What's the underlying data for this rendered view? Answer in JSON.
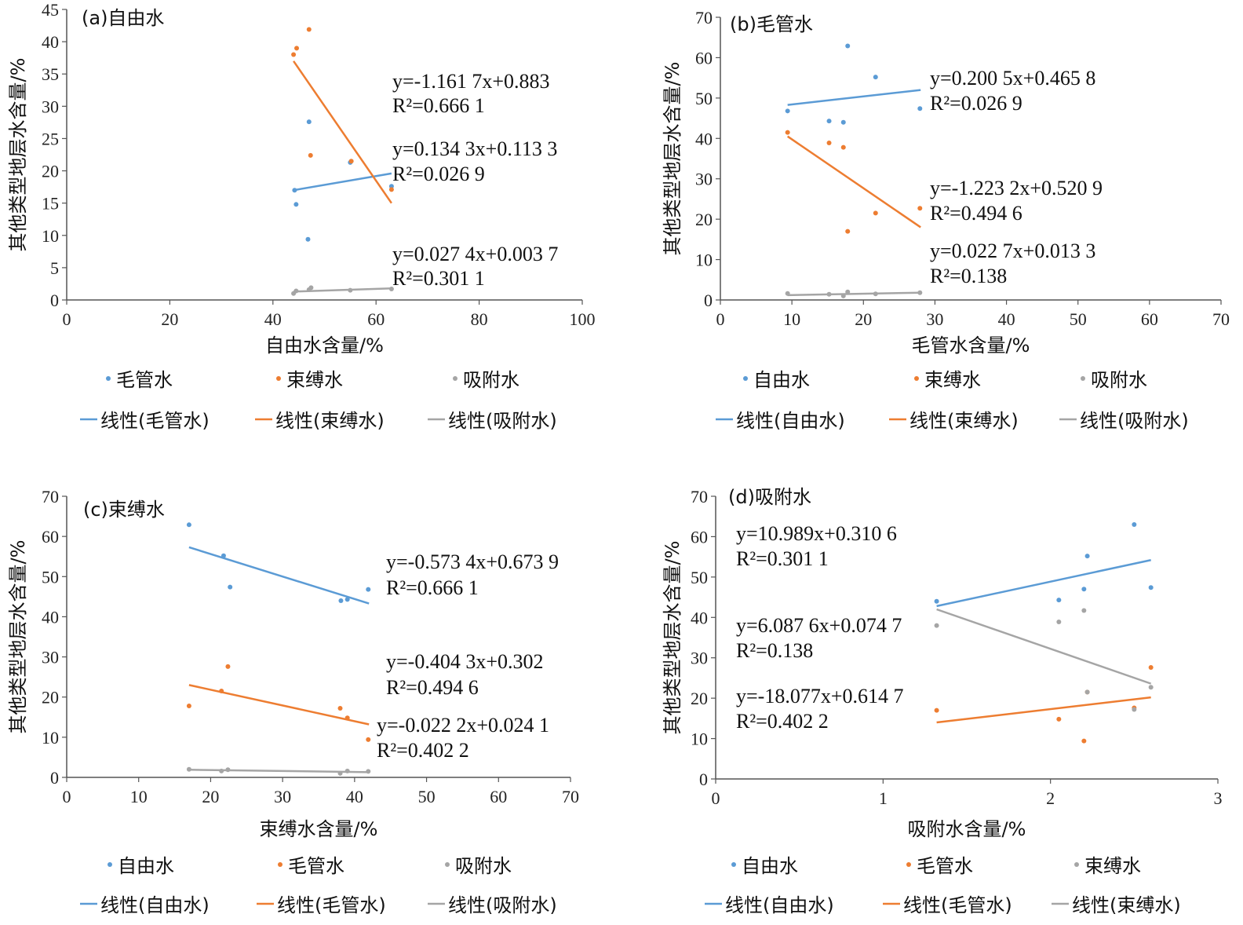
{
  "colors": {
    "blue": "#5b9bd5",
    "orange": "#ed7d31",
    "gray": "#a5a5a5"
  },
  "chart_data": [
    {
      "type": "scatter",
      "title": "(a)自由水",
      "xlabel": "自由水含量/%",
      "ylabel": "其他类型地层水含量/%",
      "xlim": [
        0,
        100
      ],
      "ylim": [
        0,
        45
      ],
      "xticks": [
        "0",
        "20",
        "40",
        "60",
        "80",
        "100"
      ],
      "yticks": [
        "0",
        "5",
        "10",
        "15",
        "20",
        "25",
        "30",
        "35",
        "40",
        "45"
      ],
      "series": [
        {
          "name": "毛管水",
          "color": "blue",
          "points": [
            [
              44.2,
              17.0
            ],
            [
              44.5,
              14.8
            ],
            [
              47.0,
              27.6
            ],
            [
              46.8,
              9.4
            ],
            [
              55.0,
              21.3
            ],
            [
              63.0,
              17.6
            ]
          ],
          "trend": {
            "name": "线性(毛管水)",
            "x": [
              44,
              63
            ],
            "y": [
              17.0,
              19.6
            ]
          },
          "equation": {
            "eq": "y=0.134 3x+0.113 3",
            "r2": "R²=0.026 9"
          }
        },
        {
          "name": "束缚水",
          "color": "orange",
          "points": [
            [
              44.0,
              38.0
            ],
            [
              44.6,
              39.0
            ],
            [
              47.0,
              41.9
            ],
            [
              47.3,
              22.4
            ],
            [
              55.2,
              21.5
            ],
            [
              63.0,
              17.1
            ]
          ],
          "trend": {
            "name": "线性(束缚水)",
            "x": [
              44,
              63
            ],
            "y": [
              37.0,
              15.0
            ]
          },
          "equation": {
            "eq": "y=-1.161 7x+0.883",
            "r2": "R²=0.666 1"
          }
        },
        {
          "name": "吸附水",
          "color": "gray",
          "points": [
            [
              44.0,
              1.0
            ],
            [
              44.5,
              1.4
            ],
            [
              47.0,
              1.6
            ],
            [
              47.4,
              1.9
            ],
            [
              55.0,
              1.5
            ],
            [
              63.0,
              1.7
            ]
          ],
          "trend": {
            "name": "线性(吸附水)",
            "x": [
              44,
              63
            ],
            "y": [
              1.3,
              1.8
            ]
          },
          "equation": {
            "eq": "y=0.027 4x+0.003 7",
            "r2": "R²=0.301 1"
          }
        }
      ]
    },
    {
      "type": "scatter",
      "title": "(b)毛管水",
      "xlabel": "毛管水含量/%",
      "ylabel": "其他类型地层水含量/%",
      "xlim": [
        0,
        70
      ],
      "ylim": [
        0,
        70
      ],
      "xticks": [
        "0",
        "10",
        "20",
        "30",
        "40",
        "50",
        "60",
        "70"
      ],
      "yticks": [
        "0",
        "10",
        "20",
        "30",
        "40",
        "50",
        "60",
        "70"
      ],
      "series": [
        {
          "name": "自由水",
          "color": "blue",
          "points": [
            [
              9.4,
              46.8
            ],
            [
              15.2,
              44.3
            ],
            [
              17.2,
              44.0
            ],
            [
              17.8,
              62.9
            ],
            [
              21.7,
              55.2
            ],
            [
              27.9,
              47.4
            ]
          ],
          "trend": {
            "name": "线性(自由水)",
            "x": [
              9.4,
              28
            ],
            "y": [
              48.3,
              52.0
            ]
          },
          "equation": {
            "eq": "y=0.200 5x+0.465 8",
            "r2": "R²=0.026 9"
          }
        },
        {
          "name": "束缚水",
          "color": "orange",
          "points": [
            [
              9.4,
              41.5
            ],
            [
              15.2,
              38.9
            ],
            [
              17.2,
              37.8
            ],
            [
              17.8,
              17.0
            ],
            [
              21.7,
              21.5
            ],
            [
              27.9,
              22.7
            ]
          ],
          "trend": {
            "name": "线性(束缚水)",
            "x": [
              9.4,
              28
            ],
            "y": [
              40.5,
              18.0
            ]
          },
          "equation": {
            "eq": "y=-1.223 2x+0.520 9",
            "r2": "R²=0.494 6"
          }
        },
        {
          "name": "吸附水",
          "color": "gray",
          "points": [
            [
              9.4,
              1.6
            ],
            [
              15.2,
              1.4
            ],
            [
              17.2,
              1.0
            ],
            [
              17.8,
              2.0
            ],
            [
              21.7,
              1.5
            ],
            [
              27.9,
              1.8
            ]
          ],
          "trend": {
            "name": "线性(吸附水)",
            "x": [
              9.4,
              28
            ],
            "y": [
              1.2,
              1.8
            ]
          },
          "equation": {
            "eq": "y=0.022 7x+0.013 3",
            "r2": "R²=0.138"
          }
        }
      ]
    },
    {
      "type": "scatter",
      "title": "(c)束缚水",
      "xlabel": "束缚水含量/%",
      "ylabel": "其他类型地层水含量/%",
      "xlim": [
        0,
        70
      ],
      "ylim": [
        0,
        70
      ],
      "xticks": [
        "0",
        "10",
        "20",
        "30",
        "40",
        "50",
        "60",
        "70"
      ],
      "yticks": [
        "0",
        "10",
        "20",
        "30",
        "40",
        "50",
        "60",
        "70"
      ],
      "series": [
        {
          "name": "自由水",
          "color": "blue",
          "points": [
            [
              17.0,
              62.9
            ],
            [
              21.8,
              55.2
            ],
            [
              22.7,
              47.4
            ],
            [
              38.1,
              44.0
            ],
            [
              39.0,
              44.3
            ],
            [
              41.9,
              46.8
            ]
          ],
          "trend": {
            "name": "线性(自由水)",
            "x": [
              17,
              42
            ],
            "y": [
              57.3,
              43.3
            ]
          },
          "equation": {
            "eq": "y=-0.573 4x+0.673 9",
            "r2": "R²=0.666 1"
          }
        },
        {
          "name": "毛管水",
          "color": "orange",
          "points": [
            [
              17.0,
              17.8
            ],
            [
              21.5,
              21.5
            ],
            [
              22.4,
              27.6
            ],
            [
              38.0,
              17.2
            ],
            [
              39.0,
              14.8
            ],
            [
              41.9,
              9.4
            ]
          ],
          "trend": {
            "name": "线性(毛管水)",
            "x": [
              17,
              42
            ],
            "y": [
              23.0,
              13.2
            ]
          },
          "equation": {
            "eq": "y=-0.404 3x+0.302",
            "r2": "R²=0.494 6"
          }
        },
        {
          "name": "吸附水",
          "color": "gray",
          "points": [
            [
              17.0,
              2.0
            ],
            [
              21.5,
              1.6
            ],
            [
              22.4,
              1.9
            ],
            [
              38.0,
              1.0
            ],
            [
              39.0,
              1.6
            ],
            [
              41.9,
              1.5
            ]
          ],
          "trend": {
            "name": "线性(吸附水)",
            "x": [
              17,
              42
            ],
            "y": [
              1.9,
              1.3
            ]
          },
          "equation": {
            "eq": "y=-0.022 2x+0.024 1",
            "r2": "R²=0.402 2"
          }
        }
      ]
    },
    {
      "type": "scatter",
      "title": "(d)吸附水",
      "xlabel": "吸附水含量/%",
      "ylabel": "其他类型地层水含量/%",
      "xlim": [
        0,
        3
      ],
      "ylim": [
        0,
        70
      ],
      "xticks": [
        "0",
        "1",
        "2",
        "3"
      ],
      "yticks": [
        "0",
        "10",
        "20",
        "30",
        "40",
        "50",
        "60",
        "70"
      ],
      "series": [
        {
          "name": "自由水",
          "color": "blue",
          "points": [
            [
              1.32,
              44.0
            ],
            [
              2.05,
              44.3
            ],
            [
              2.2,
              47.0
            ],
            [
              2.22,
              55.2
            ],
            [
              2.5,
              63.0
            ],
            [
              2.6,
              47.4
            ]
          ],
          "trend": {
            "name": "线性(自由水)",
            "x": [
              1.32,
              2.6
            ],
            "y": [
              42.8,
              54.2
            ]
          },
          "equation": {
            "eq": "y=10.989x+0.310 6",
            "r2": "R²=0.301 1"
          }
        },
        {
          "name": "毛管水",
          "color": "orange",
          "points": [
            [
              1.32,
              17.0
            ],
            [
              2.05,
              14.8
            ],
            [
              2.2,
              9.4
            ],
            [
              2.22,
              21.5
            ],
            [
              2.5,
              17.6
            ],
            [
              2.6,
              27.6
            ]
          ],
          "trend": {
            "name": "线性(毛管水)",
            "x": [
              1.32,
              2.6
            ],
            "y": [
              14.0,
              20.2
            ]
          },
          "equation": {
            "eq": "y=6.087 6x+0.074 7",
            "r2": "R²=0.138"
          }
        },
        {
          "name": "束缚水",
          "color": "gray",
          "points": [
            [
              1.32,
              38.0
            ],
            [
              2.05,
              38.9
            ],
            [
              2.2,
              41.7
            ],
            [
              2.22,
              21.5
            ],
            [
              2.5,
              17.2
            ],
            [
              2.6,
              22.7
            ]
          ],
          "trend": {
            "name": "线性(束缚水)",
            "x": [
              1.32,
              2.6
            ],
            "y": [
              42.0,
              23.6
            ]
          },
          "equation": {
            "eq": "y=-18.077x+0.614 7",
            "r2": "R²=0.402 2"
          }
        }
      ]
    }
  ]
}
